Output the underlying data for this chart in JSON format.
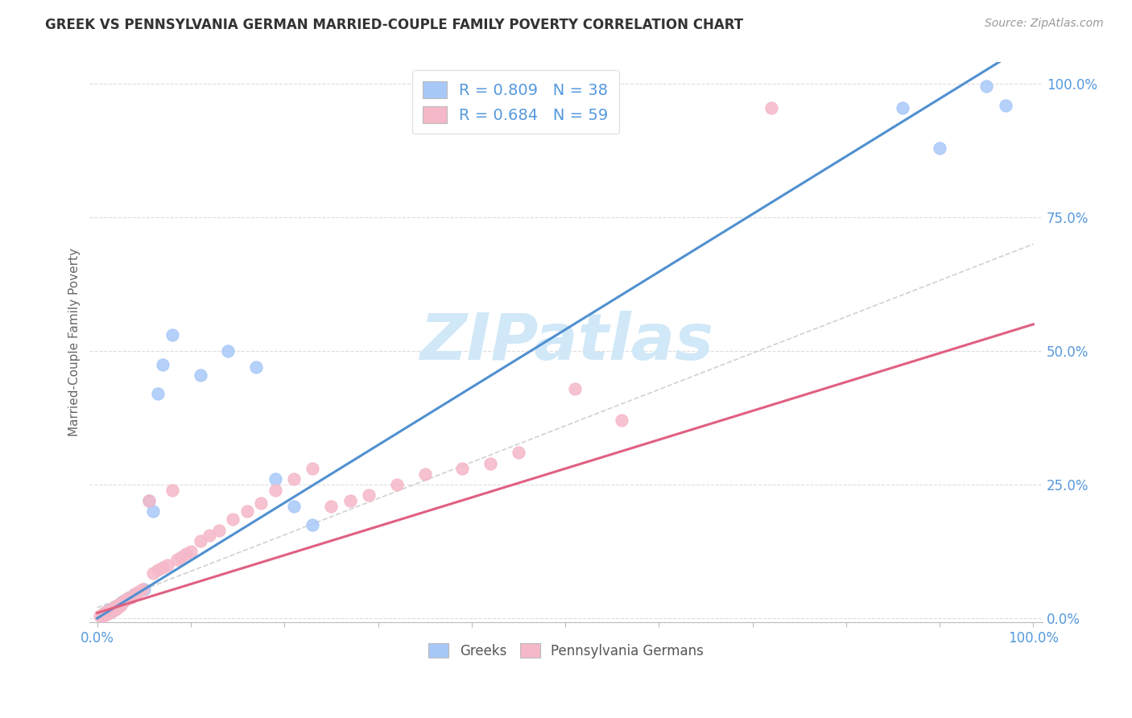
{
  "title": "GREEK VS PENNSYLVANIA GERMAN MARRIED-COUPLE FAMILY POVERTY CORRELATION CHART",
  "source": "Source: ZipAtlas.com",
  "ylabel": "Married-Couple Family Poverty",
  "greek_R": 0.809,
  "greek_N": 38,
  "penn_R": 0.684,
  "penn_N": 59,
  "greek_color": "#a8c8f8",
  "penn_color": "#f5b8c8",
  "greek_line_color": "#5090d0",
  "penn_line_color": "#e06080",
  "diagonal_color": "#cccccc",
  "watermark": "ZIPatlas",
  "watermark_color": "#d0e8f8",
  "title_fontsize": 12,
  "source_fontsize": 10,
  "tick_color": "#5599dd",
  "grid_color": "#dddddd",
  "greek_line_slope": 1.08,
  "greek_line_intercept": 0.0,
  "penn_line_slope": 0.54,
  "penn_line_intercept": 0.01,
  "diag_slope": 0.68,
  "diag_intercept": 0.02,
  "greek_points_x": [
    0.005,
    0.007,
    0.008,
    0.009,
    0.01,
    0.011,
    0.012,
    0.013,
    0.014,
    0.015,
    0.016,
    0.017,
    0.018,
    0.019,
    0.02,
    0.022,
    0.024,
    0.026,
    0.028,
    0.03,
    0.035,
    0.04,
    0.05,
    0.055,
    0.06,
    0.065,
    0.07,
    0.08,
    0.11,
    0.14,
    0.17,
    0.19,
    0.21,
    0.23,
    0.86,
    0.9,
    0.95,
    0.97
  ],
  "greek_points_y": [
    0.005,
    0.008,
    0.01,
    0.007,
    0.012,
    0.009,
    0.015,
    0.011,
    0.013,
    0.016,
    0.014,
    0.018,
    0.02,
    0.017,
    0.022,
    0.025,
    0.028,
    0.03,
    0.032,
    0.035,
    0.04,
    0.045,
    0.055,
    0.22,
    0.2,
    0.42,
    0.475,
    0.53,
    0.455,
    0.5,
    0.47,
    0.26,
    0.21,
    0.175,
    0.955,
    0.88,
    0.995,
    0.96
  ],
  "penn_points_x": [
    0.003,
    0.005,
    0.006,
    0.007,
    0.008,
    0.009,
    0.01,
    0.011,
    0.012,
    0.013,
    0.014,
    0.015,
    0.016,
    0.017,
    0.018,
    0.019,
    0.02,
    0.021,
    0.022,
    0.023,
    0.024,
    0.025,
    0.027,
    0.03,
    0.033,
    0.036,
    0.04,
    0.044,
    0.048,
    0.055,
    0.06,
    0.065,
    0.07,
    0.075,
    0.08,
    0.085,
    0.09,
    0.095,
    0.1,
    0.11,
    0.12,
    0.13,
    0.145,
    0.16,
    0.175,
    0.19,
    0.21,
    0.23,
    0.25,
    0.27,
    0.29,
    0.32,
    0.35,
    0.39,
    0.42,
    0.45,
    0.51,
    0.56,
    0.72
  ],
  "penn_points_y": [
    0.004,
    0.006,
    0.008,
    0.005,
    0.01,
    0.007,
    0.012,
    0.009,
    0.011,
    0.013,
    0.015,
    0.012,
    0.018,
    0.014,
    0.016,
    0.02,
    0.022,
    0.018,
    0.025,
    0.022,
    0.028,
    0.024,
    0.03,
    0.035,
    0.038,
    0.04,
    0.045,
    0.05,
    0.055,
    0.22,
    0.085,
    0.09,
    0.095,
    0.1,
    0.24,
    0.11,
    0.115,
    0.12,
    0.125,
    0.145,
    0.155,
    0.165,
    0.185,
    0.2,
    0.215,
    0.24,
    0.26,
    0.28,
    0.21,
    0.22,
    0.23,
    0.25,
    0.27,
    0.28,
    0.29,
    0.31,
    0.43,
    0.37,
    0.955
  ]
}
